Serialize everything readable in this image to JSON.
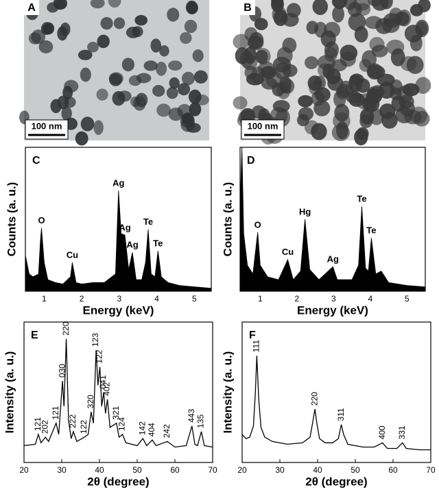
{
  "images": [
    {
      "label": "A",
      "scale_bar": "100 nm"
    },
    {
      "label": "B",
      "scale_bar": "100 nm"
    }
  ],
  "chart_data": [
    {
      "type": "area",
      "label": "C",
      "x_label": "Energy (keV)",
      "y_label": "Counts (a. u.)",
      "color": "#000000",
      "x": [
        0.5,
        0.6,
        0.7,
        0.85,
        0.9,
        0.93,
        1.0,
        1.1,
        1.3,
        1.5,
        1.7,
        1.75,
        1.85,
        2.0,
        2.3,
        2.6,
        2.9,
        2.98,
        3.05,
        3.15,
        3.25,
        3.35,
        3.45,
        3.6,
        3.7,
        3.77,
        3.85,
        3.95,
        4.03,
        4.12,
        4.3,
        4.6,
        5.0,
        5.45
      ],
      "values": [
        25,
        12,
        10,
        12,
        35,
        44,
        20,
        8,
        6,
        5,
        10,
        20,
        6,
        5,
        6,
        6,
        12,
        70,
        40,
        39,
        15,
        27,
        8,
        8,
        20,
        43,
        12,
        10,
        28,
        10,
        6,
        4,
        3,
        2
      ],
      "xlim": [
        0.5,
        5.45
      ],
      "ylim": [
        0,
        100
      ],
      "xticks": [
        1,
        2,
        3,
        4,
        5
      ],
      "annotations": [
        {
          "text": "O",
          "x": 0.93
        },
        {
          "text": "Cu",
          "x": 1.75
        },
        {
          "text": "Ag",
          "x": 2.98
        },
        {
          "text": "Ag",
          "x": 3.15
        },
        {
          "text": "Ag",
          "x": 3.35
        },
        {
          "text": "Te",
          "x": 3.77
        },
        {
          "text": "Te",
          "x": 4.03
        }
      ]
    },
    {
      "type": "area",
      "label": "D",
      "x_label": "Energy (keV)",
      "y_label": "Counts (a. u.)",
      "color": "#000000",
      "x": [
        0.45,
        0.5,
        0.55,
        0.65,
        0.8,
        0.93,
        1.0,
        1.2,
        1.5,
        1.75,
        1.9,
        2.1,
        2.22,
        2.35,
        2.6,
        2.98,
        3.1,
        3.5,
        3.68,
        3.77,
        3.87,
        3.95,
        4.03,
        4.15,
        4.3,
        4.5,
        5.0,
        5.5
      ],
      "values": [
        60,
        100,
        40,
        18,
        12,
        41,
        18,
        10,
        8,
        22,
        8,
        14,
        50,
        15,
        8,
        17,
        8,
        8,
        18,
        59,
        16,
        14,
        37,
        12,
        14,
        6,
        4,
        3
      ],
      "xlim": [
        0.45,
        5.5
      ],
      "ylim": [
        0,
        100
      ],
      "xticks": [
        1,
        2,
        3,
        4,
        5
      ],
      "annotations": [
        {
          "text": "O",
          "x": 0.93
        },
        {
          "text": "Cu",
          "x": 1.75
        },
        {
          "text": "Hg",
          "x": 2.22
        },
        {
          "text": "Ag",
          "x": 2.98
        },
        {
          "text": "Te",
          "x": 3.77
        },
        {
          "text": "Te",
          "x": 4.03
        }
      ]
    },
    {
      "type": "line",
      "label": "E",
      "x_label": "2θ (degree)",
      "y_label": "Intensity (a. u.)",
      "color": "#000000",
      "x": [
        20,
        23,
        23.8,
        24.5,
        25.7,
        26.5,
        28.5,
        29.2,
        30.2,
        30.6,
        31.2,
        31.8,
        32.5,
        33.1,
        34,
        36,
        37,
        37.8,
        38.4,
        39.1,
        39.6,
        40.1,
        40.6,
        41.1,
        41.6,
        42.1,
        42.8,
        44.5,
        45.2,
        46.1,
        47,
        50,
        51.5,
        52.5,
        54,
        55,
        58,
        60,
        63,
        64.5,
        65.3,
        66,
        67,
        67.8,
        70
      ],
      "values": [
        12,
        13,
        20,
        14,
        18,
        15,
        28,
        20,
        58,
        40,
        88,
        30,
        17,
        22,
        15,
        18,
        20,
        36,
        28,
        80,
        55,
        68,
        40,
        50,
        35,
        45,
        25,
        28,
        18,
        20,
        14,
        12,
        17,
        12,
        16,
        12,
        15,
        11,
        12,
        26,
        13,
        12,
        22,
        12,
        11
      ],
      "xlim": [
        20,
        70
      ],
      "ylim": [
        0,
        100
      ],
      "xticks": [
        20,
        30,
        40,
        50,
        60,
        70
      ],
      "annotations": [
        {
          "text": "121",
          "x": 23.8
        },
        {
          "text": "202",
          "x": 25.7
        },
        {
          "text": "121",
          "x": 28.5
        },
        {
          "text": "030",
          "x": 30.2
        },
        {
          "text": "220",
          "x": 31.2
        },
        {
          "text": "222",
          "x": 33.1
        },
        {
          "text": "122",
          "x": 36
        },
        {
          "text": "320",
          "x": 37.8
        },
        {
          "text": "123",
          "x": 39.1
        },
        {
          "text": "122",
          "x": 40.1
        },
        {
          "text": "041",
          "x": 41.1
        },
        {
          "text": "402",
          "x": 42.1
        },
        {
          "text": "321",
          "x": 44.5
        },
        {
          "text": "124",
          "x": 46.1
        },
        {
          "text": "142",
          "x": 51.5
        },
        {
          "text": "404",
          "x": 54
        },
        {
          "text": "242",
          "x": 58
        },
        {
          "text": "443",
          "x": 64.5
        },
        {
          "text": "135",
          "x": 67
        }
      ]
    },
    {
      "type": "line",
      "label": "F",
      "x_label": "2θ (degree)",
      "y_label": "Intensity (a. u.)",
      "color": "#000000",
      "x": [
        20,
        21,
        22,
        23,
        23.5,
        23.9,
        24.4,
        25,
        26,
        28,
        32,
        36,
        38,
        38.8,
        39.3,
        39.8,
        40.5,
        42,
        44,
        45.5,
        46.3,
        46.9,
        48,
        52,
        55,
        57.2,
        58.5,
        61,
        62.5,
        63.5,
        67,
        70
      ],
      "values": [
        20,
        17,
        18,
        26,
        50,
        76,
        45,
        25,
        18,
        15,
        13,
        14,
        18,
        30,
        38,
        28,
        17,
        14,
        14,
        17,
        27,
        20,
        13,
        11,
        11,
        14,
        10,
        10,
        14,
        10,
        9,
        9
      ],
      "xlim": [
        20,
        70
      ],
      "ylim": [
        0,
        100
      ],
      "xticks": [
        20,
        30,
        40,
        50,
        60,
        70
      ],
      "annotations": [
        {
          "text": "111",
          "x": 23.9
        },
        {
          "text": "220",
          "x": 39.3
        },
        {
          "text": "311",
          "x": 46.3
        },
        {
          "text": "400",
          "x": 57.2
        },
        {
          "text": "331",
          "x": 62.5
        }
      ]
    }
  ]
}
